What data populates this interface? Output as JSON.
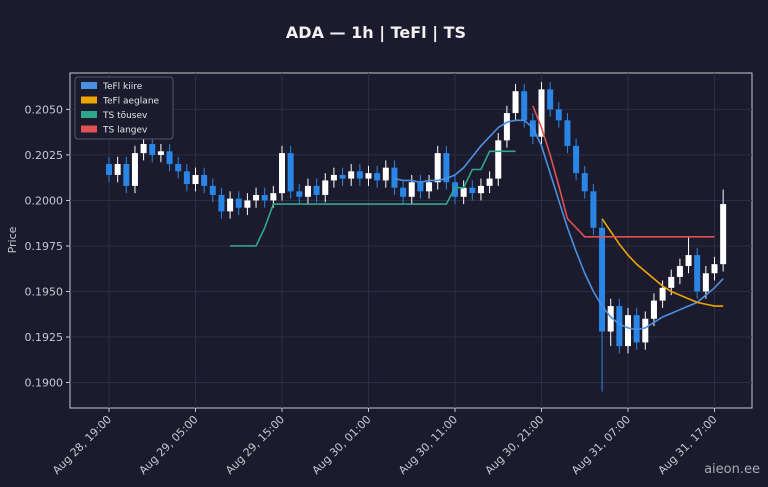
{
  "chart_data": {
    "type": "candlestick",
    "title": "ADA — 1h  |  TeFl  |  TS",
    "y_label": "Price",
    "watermark": "aieon.ee",
    "x": [
      "Aug 28, 19:00",
      "Aug 28, 20:00",
      "Aug 28, 21:00",
      "Aug 28, 22:00",
      "Aug 28, 23:00",
      "Aug 29, 00:00",
      "Aug 29, 01:00",
      "Aug 29, 02:00",
      "Aug 29, 03:00",
      "Aug 29, 04:00",
      "Aug 29, 05:00",
      "Aug 29, 06:00",
      "Aug 29, 07:00",
      "Aug 29, 08:00",
      "Aug 29, 09:00",
      "Aug 29, 10:00",
      "Aug 29, 11:00",
      "Aug 29, 12:00",
      "Aug 29, 13:00",
      "Aug 29, 14:00",
      "Aug 29, 15:00",
      "Aug 29, 16:00",
      "Aug 29, 17:00",
      "Aug 29, 18:00",
      "Aug 29, 19:00",
      "Aug 29, 20:00",
      "Aug 29, 21:00",
      "Aug 29, 22:00",
      "Aug 29, 23:00",
      "Aug 30, 00:00",
      "Aug 30, 01:00",
      "Aug 30, 02:00",
      "Aug 30, 03:00",
      "Aug 30, 04:00",
      "Aug 30, 05:00",
      "Aug 30, 06:00",
      "Aug 30, 07:00",
      "Aug 30, 08:00",
      "Aug 30, 09:00",
      "Aug 30, 10:00",
      "Aug 30, 11:00",
      "Aug 30, 12:00",
      "Aug 30, 13:00",
      "Aug 30, 14:00",
      "Aug 30, 15:00",
      "Aug 30, 16:00",
      "Aug 30, 17:00",
      "Aug 30, 18:00",
      "Aug 30, 19:00",
      "Aug 30, 20:00",
      "Aug 30, 21:00",
      "Aug 30, 22:00",
      "Aug 30, 23:00",
      "Aug 31, 00:00",
      "Aug 31, 01:00",
      "Aug 31, 02:00",
      "Aug 31, 03:00",
      "Aug 31, 04:00",
      "Aug 31, 05:00",
      "Aug 31, 06:00",
      "Aug 31, 07:00",
      "Aug 31, 08:00",
      "Aug 31, 09:00",
      "Aug 31, 10:00",
      "Aug 31, 11:00",
      "Aug 31, 12:00",
      "Aug 31, 13:00",
      "Aug 31, 14:00",
      "Aug 31, 15:00",
      "Aug 31, 16:00",
      "Aug 31, 17:00",
      "Aug 31, 18:00"
    ],
    "xticks": [
      "Aug 28, 19:00",
      "Aug 29, 05:00",
      "Aug 29, 15:00",
      "Aug 30, 01:00",
      "Aug 30, 11:00",
      "Aug 30, 21:00",
      "Aug 31, 07:00",
      "Aug 31, 17:00"
    ],
    "ylim": [
      0.1886,
      0.207
    ],
    "yticks": [
      {
        "value": 0.19,
        "label": "0.1900"
      },
      0.1925,
      {
        "value": 0.195,
        "label": "0.1950"
      },
      0.1975,
      {
        "value": 0.2,
        "label": "0.2000"
      },
      0.2025,
      {
        "value": 0.205,
        "label": "0.2050"
      }
    ],
    "grid": true,
    "legend": "upper left",
    "up_color": "#ffffff",
    "down_color": "#2a86e6",
    "open": [
      0.202,
      0.2014,
      0.202,
      0.2008,
      0.2026,
      0.2031,
      0.2025,
      0.2027,
      0.202,
      0.2016,
      0.2009,
      0.2014,
      0.2008,
      0.2003,
      0.1994,
      0.2001,
      0.1996,
      0.2,
      0.2003,
      0.2,
      0.2004,
      0.2026,
      0.2005,
      0.2002,
      0.2008,
      0.2003,
      0.2011,
      0.2014,
      0.2012,
      0.2016,
      0.2012,
      0.2015,
      0.2011,
      0.2018,
      0.2007,
      0.2002,
      0.201,
      0.2005,
      0.201,
      0.2026,
      0.201,
      0.2002,
      0.2007,
      0.2004,
      0.2008,
      0.2012,
      0.2033,
      0.2048,
      0.206,
      0.2044,
      0.2035,
      0.2061,
      0.205,
      0.2044,
      0.203,
      0.2015,
      0.2005,
      0.1985,
      0.1928,
      0.1942,
      0.192,
      0.1937,
      0.1922,
      0.1935,
      0.1945,
      0.1952,
      0.1958,
      0.1964,
      0.197,
      0.195,
      0.196,
      0.1965
    ],
    "high": [
      0.2024,
      0.2024,
      0.2024,
      0.203,
      0.2035,
      0.2035,
      0.2031,
      0.2031,
      0.2024,
      0.202,
      0.2018,
      0.2018,
      0.2012,
      0.2007,
      0.2005,
      0.2005,
      0.2004,
      0.2007,
      0.2007,
      0.2008,
      0.203,
      0.203,
      0.2009,
      0.2012,
      0.2012,
      0.2015,
      0.2018,
      0.2018,
      0.202,
      0.202,
      0.2019,
      0.2019,
      0.2022,
      0.2022,
      0.2011,
      0.2014,
      0.2014,
      0.2014,
      0.203,
      0.203,
      0.2014,
      0.2011,
      0.2011,
      0.2012,
      0.2016,
      0.2037,
      0.2052,
      0.2064,
      0.2064,
      0.2048,
      0.2065,
      0.2065,
      0.2054,
      0.2048,
      0.2034,
      0.2019,
      0.2009,
      0.1989,
      0.1946,
      0.1946,
      0.1941,
      0.1941,
      0.1939,
      0.1949,
      0.1956,
      0.1962,
      0.1968,
      0.198,
      0.1974,
      0.1964,
      0.1969,
      0.2006
    ],
    "low": [
      0.201,
      0.201,
      0.2004,
      0.2004,
      0.2022,
      0.2021,
      0.2021,
      0.2016,
      0.2012,
      0.2005,
      0.2005,
      0.2004,
      0.1999,
      0.199,
      0.199,
      0.1992,
      0.1992,
      0.1996,
      0.1996,
      0.1996,
      0.2,
      0.2001,
      0.1998,
      0.1998,
      0.1999,
      0.1999,
      0.2007,
      0.2008,
      0.2008,
      0.2008,
      0.2008,
      0.2007,
      0.2007,
      0.2003,
      0.1998,
      0.1998,
      0.2001,
      0.2001,
      0.2006,
      0.2006,
      0.1998,
      0.1998,
      0.2,
      0.2,
      0.2004,
      0.2008,
      0.2029,
      0.2044,
      0.204,
      0.2031,
      0.2031,
      0.2046,
      0.204,
      0.2026,
      0.2011,
      0.2001,
      0.1981,
      0.1895,
      0.192,
      0.1916,
      0.1916,
      0.1918,
      0.1918,
      0.1931,
      0.1941,
      0.1948,
      0.1954,
      0.196,
      0.1946,
      0.1946,
      0.1956,
      0.1961
    ],
    "close": [
      0.2014,
      0.202,
      0.2008,
      0.2026,
      0.2031,
      0.2025,
      0.2027,
      0.202,
      0.2016,
      0.2009,
      0.2014,
      0.2008,
      0.2003,
      0.1994,
      0.2001,
      0.1996,
      0.2,
      0.2003,
      0.2,
      0.2004,
      0.2026,
      0.2005,
      0.2002,
      0.2008,
      0.2003,
      0.2011,
      0.2014,
      0.2012,
      0.2016,
      0.2012,
      0.2015,
      0.2011,
      0.2018,
      0.2007,
      0.2002,
      0.201,
      0.2005,
      0.201,
      0.2026,
      0.201,
      0.2002,
      0.2007,
      0.2004,
      0.2008,
      0.2012,
      0.2033,
      0.2048,
      0.206,
      0.2044,
      0.2035,
      0.2061,
      0.205,
      0.2044,
      0.203,
      0.2015,
      0.2005,
      0.1985,
      0.1928,
      0.1942,
      0.192,
      0.1937,
      0.1922,
      0.1935,
      0.1945,
      0.1952,
      0.1958,
      0.1964,
      0.197,
      0.195,
      0.196,
      0.1965,
      0.1998
    ],
    "series": [
      {
        "name": "TeFl kiire",
        "color": "#4a90e2",
        "values": [
          null,
          null,
          null,
          null,
          null,
          null,
          null,
          null,
          null,
          null,
          null,
          null,
          null,
          null,
          null,
          null,
          null,
          null,
          null,
          null,
          null,
          null,
          null,
          null,
          null,
          null,
          null,
          null,
          null,
          null,
          null,
          null,
          null,
          0.2012,
          0.2011,
          0.2011,
          0.201,
          0.2011,
          0.2011,
          0.2012,
          0.2014,
          0.2018,
          0.2024,
          0.203,
          0.2035,
          0.204,
          0.2043,
          0.2044,
          0.2044,
          0.204,
          0.203,
          0.2015,
          0.2,
          0.1985,
          0.1972,
          0.196,
          0.195,
          0.1942,
          0.1936,
          0.1932,
          0.193,
          0.1929,
          0.193,
          0.1933,
          0.1936,
          0.1938,
          0.194,
          0.1942,
          0.1944,
          0.1948,
          0.1952,
          0.1957
        ]
      },
      {
        "name": "TeFl aeglane",
        "color": "#f0a500",
        "values": [
          null,
          null,
          null,
          null,
          null,
          null,
          null,
          null,
          null,
          null,
          null,
          null,
          null,
          null,
          null,
          null,
          null,
          null,
          null,
          null,
          null,
          null,
          null,
          null,
          null,
          null,
          null,
          null,
          null,
          null,
          null,
          null,
          null,
          null,
          null,
          null,
          null,
          null,
          null,
          null,
          null,
          null,
          null,
          null,
          null,
          null,
          null,
          null,
          null,
          null,
          null,
          null,
          null,
          null,
          null,
          null,
          null,
          0.199,
          0.1983,
          0.1976,
          0.197,
          0.1965,
          0.1961,
          0.1957,
          0.1953,
          0.195,
          0.1948,
          0.1946,
          0.1944,
          0.1943,
          0.1942,
          0.1942
        ]
      },
      {
        "name": "TS tõusev",
        "color": "#2ea88a",
        "values": [
          null,
          null,
          null,
          null,
          null,
          null,
          null,
          null,
          null,
          null,
          null,
          null,
          null,
          null,
          0.1975,
          0.1975,
          0.1975,
          0.1975,
          0.1985,
          0.1998,
          0.1998,
          0.1998,
          0.1998,
          0.1998,
          0.1998,
          0.1998,
          0.1998,
          0.1998,
          0.1998,
          0.1998,
          0.1998,
          0.1998,
          0.1998,
          0.1998,
          0.1998,
          0.1998,
          0.1998,
          0.1998,
          0.1998,
          0.1998,
          0.2007,
          0.2007,
          0.2017,
          0.2017,
          0.2027,
          0.2027,
          0.2027,
          0.2027,
          null,
          null,
          null,
          null,
          null,
          null,
          null,
          null,
          null,
          null,
          null,
          null,
          null,
          null,
          null,
          null,
          null,
          null,
          null,
          null,
          null,
          null,
          null,
          null
        ]
      },
      {
        "name": "TS langev",
        "color": "#e05252",
        "values": [
          null,
          null,
          null,
          null,
          null,
          null,
          null,
          null,
          null,
          null,
          null,
          null,
          null,
          null,
          null,
          null,
          null,
          null,
          null,
          null,
          null,
          null,
          null,
          null,
          null,
          null,
          null,
          null,
          null,
          null,
          null,
          null,
          null,
          null,
          null,
          null,
          null,
          null,
          null,
          null,
          null,
          null,
          null,
          null,
          null,
          null,
          null,
          null,
          null,
          0.2052,
          0.204,
          0.2025,
          0.2008,
          0.199,
          0.1985,
          0.198,
          0.198,
          0.198,
          0.198,
          0.198,
          0.198,
          0.198,
          0.198,
          0.198,
          0.198,
          0.198,
          0.198,
          0.198,
          0.198,
          0.198,
          0.198,
          null
        ]
      }
    ]
  }
}
